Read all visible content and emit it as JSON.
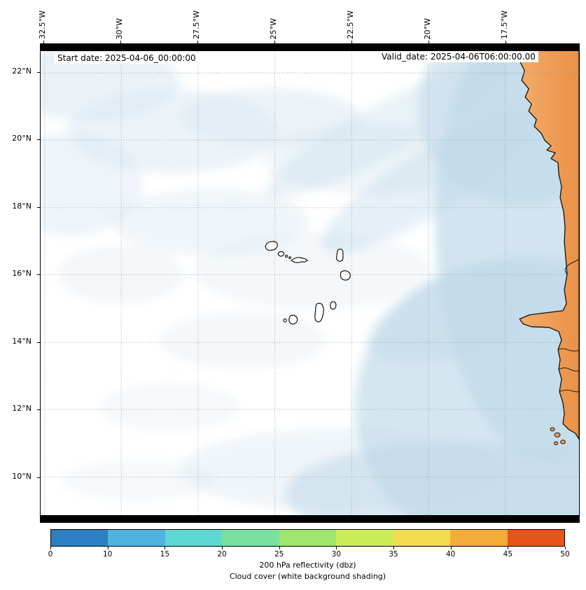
{
  "annotations": {
    "start_date": "Start date: 2025-04-06_00:00:00",
    "valid_date": "Valid_date: 2025-04-06T06:00:00.00"
  },
  "axes": {
    "lon_ticks": [
      "32.5°W",
      "30°W",
      "27.5°W",
      "25°W",
      "22.5°W",
      "20°W",
      "17.5°W"
    ],
    "lat_ticks": [
      "22°N",
      "20°N",
      "18°N",
      "16°N",
      "14°N",
      "12°N",
      "10°N"
    ]
  },
  "colorbar": {
    "tick_labels": [
      "0",
      "10",
      "15",
      "20",
      "25",
      "30",
      "35",
      "40",
      "45",
      "50"
    ],
    "segment_colors": [
      "#2b7fc2",
      "#4fb3e0",
      "#5cd9d3",
      "#79e0a0",
      "#9de56c",
      "#ccec57",
      "#f3dd4e",
      "#f3ac3a",
      "#e8531a"
    ],
    "label_line1": "200 hPa reflectivity (dbz)",
    "label_line2": "Cloud cover (white background shading)"
  },
  "colors": {
    "land": "#efA05c",
    "land_edge": "#e8914a",
    "cloud_light": "#d9e7f1",
    "cloud_medium": "#bfd9e9",
    "coastline": "#111111",
    "gridline": "#999999"
  },
  "chart_data": {
    "type": "heatmap",
    "title": "",
    "description": "Meteorological model output map over the eastern tropical Atlantic showing cloud cover as pale blue/white shading, the Cape Verde archipelago outlined in black, and the orange West African coastline (Mauritania/Senegal) on the right.",
    "x_axis": {
      "label": "",
      "ticks": [
        "32.5°W",
        "30°W",
        "27.5°W",
        "25°W",
        "22.5°W",
        "20°W",
        "17.5°W"
      ],
      "range_deg_west": [
        32.6,
        15.1
      ]
    },
    "y_axis": {
      "label": "",
      "ticks": [
        "22°N",
        "20°N",
        "18°N",
        "16°N",
        "14°N",
        "12°N",
        "10°N"
      ],
      "range_deg_north": [
        8.7,
        22.9
      ]
    },
    "colorbar": {
      "label": "200 hPa reflectivity (dbz)",
      "boundaries": [
        0,
        10,
        15,
        20,
        25,
        30,
        35,
        40,
        45,
        50
      ]
    },
    "grid": "dotted",
    "annotations": [
      "Start date: 2025-04-06_00:00:00",
      "Valid_date: 2025-04-06T06:00:00.00"
    ],
    "subtitle": "Cloud cover (white background shading)"
  }
}
